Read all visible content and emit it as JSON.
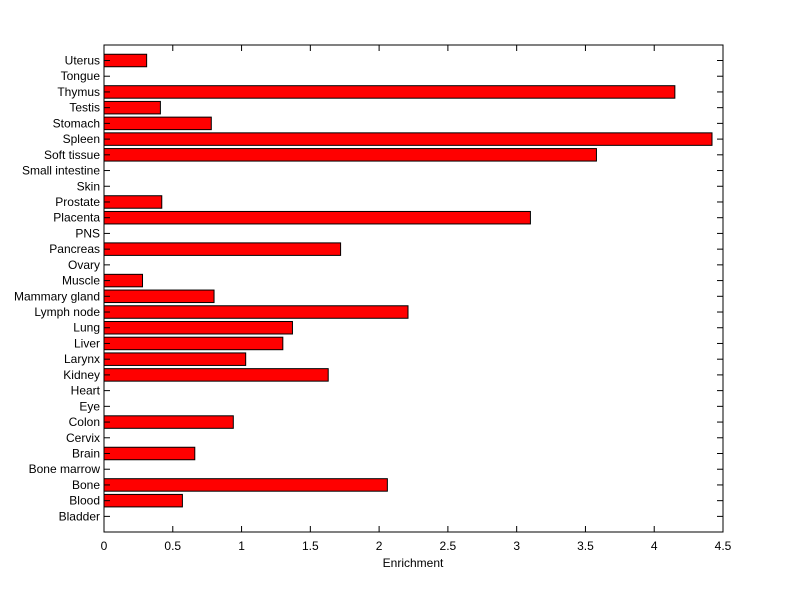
{
  "chart_data": {
    "type": "bar",
    "orientation": "horizontal",
    "title": "",
    "xlabel": "Enrichment",
    "ylabel": "",
    "xlim": [
      0,
      4.5
    ],
    "xticks": [
      0,
      0.5,
      1,
      1.5,
      2,
      2.5,
      3,
      3.5,
      4,
      4.5
    ],
    "xtick_labels": [
      "0",
      "0.5",
      "1",
      "1.5",
      "2",
      "2.5",
      "3",
      "3.5",
      "4",
      "4.5"
    ],
    "grid": false,
    "legend": "none",
    "bar_color": "#ff0000",
    "edge_color": "#000000",
    "categories": [
      "Uterus",
      "Tongue",
      "Thymus",
      "Testis",
      "Stomach",
      "Spleen",
      "Soft tissue",
      "Small intestine",
      "Skin",
      "Prostate",
      "Placenta",
      "PNS",
      "Pancreas",
      "Ovary",
      "Muscle",
      "Mammary gland",
      "Lymph node",
      "Lung",
      "Liver",
      "Larynx",
      "Kidney",
      "Heart",
      "Eye",
      "Colon",
      "Cervix",
      "Brain",
      "Bone marrow",
      "Bone",
      "Blood",
      "Bladder"
    ],
    "values": [
      0.31,
      0,
      4.15,
      0.41,
      0.78,
      4.42,
      3.58,
      0,
      0,
      0.42,
      3.1,
      0,
      1.72,
      0,
      0.28,
      0.8,
      2.21,
      1.37,
      1.3,
      1.03,
      1.63,
      0,
      0,
      0.94,
      0,
      0.66,
      0,
      2.06,
      0.57,
      0
    ]
  }
}
